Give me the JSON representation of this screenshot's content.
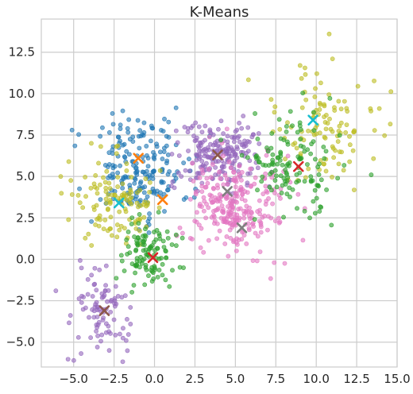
{
  "chart_data": {
    "type": "scatter",
    "title": "K-Means",
    "xlabel": "",
    "ylabel": "",
    "xlim": [
      -7.0,
      15.0
    ],
    "ylim": [
      -6.5,
      14.5
    ],
    "grid": true,
    "x_ticks": [
      -5.0,
      -2.5,
      0.0,
      2.5,
      5.0,
      7.5,
      10.0,
      12.5,
      15.0
    ],
    "x_tick_labels": [
      "−5.0",
      "−2.5",
      "0.0",
      "2.5",
      "5.0",
      "7.5",
      "10.0",
      "12.5",
      "15.0"
    ],
    "y_ticks": [
      -5.0,
      -2.5,
      0.0,
      2.5,
      5.0,
      7.5,
      10.0,
      12.5
    ],
    "y_tick_labels": [
      "−5.0",
      "−2.5",
      "0.0",
      "2.5",
      "5.0",
      "7.5",
      "10.0",
      "12.5"
    ],
    "clusters": [
      {
        "color": "#1f77b4",
        "center": [
          -1.0,
          5.5
        ],
        "spread": [
          1.5,
          1.5
        ],
        "count": 200
      },
      {
        "color": "#bcbd22",
        "center": [
          -2.5,
          3.4
        ],
        "spread": [
          1.3,
          1.3
        ],
        "count": 120
      },
      {
        "color": "#bcbd22",
        "center": [
          10.5,
          7.8
        ],
        "spread": [
          1.8,
          1.8
        ],
        "count": 110
      },
      {
        "color": "#9467bd",
        "center": [
          4.0,
          6.4
        ],
        "spread": [
          1.3,
          1.0
        ],
        "count": 200
      },
      {
        "color": "#9467bd",
        "center": [
          -3.2,
          -3.2
        ],
        "spread": [
          1.0,
          1.2
        ],
        "count": 90
      },
      {
        "color": "#e377c2",
        "center": [
          4.8,
          3.2
        ],
        "spread": [
          1.4,
          1.5
        ],
        "count": 260
      },
      {
        "color": "#2ca02c",
        "center": [
          -0.2,
          0.3
        ],
        "spread": [
          0.9,
          0.9
        ],
        "count": 110
      },
      {
        "color": "#2ca02c",
        "center": [
          8.5,
          5.5
        ],
        "spread": [
          1.4,
          1.6
        ],
        "count": 130
      }
    ],
    "centroids": [
      {
        "x": -1.0,
        "y": 6.1,
        "color": "#ff7f0e"
      },
      {
        "x": 0.5,
        "y": 3.6,
        "color": "#ff7f0e"
      },
      {
        "x": -2.2,
        "y": 3.4,
        "color": "#17becf"
      },
      {
        "x": 9.8,
        "y": 8.4,
        "color": "#17becf"
      },
      {
        "x": 3.9,
        "y": 6.3,
        "color": "#8c564b"
      },
      {
        "x": -3.1,
        "y": -3.1,
        "color": "#8c564b"
      },
      {
        "x": 4.5,
        "y": 4.1,
        "color": "#7f7f7f"
      },
      {
        "x": 5.4,
        "y": 1.9,
        "color": "#7f7f7f"
      },
      {
        "x": 8.9,
        "y": 5.6,
        "color": "#d62728"
      },
      {
        "x": -0.1,
        "y": 0.1,
        "color": "#d62728"
      }
    ],
    "outliers": [
      {
        "x": -5.1,
        "y": 7.8,
        "color": "#1f77b4"
      },
      {
        "x": -2.6,
        "y": 8.8,
        "color": "#1f77b4"
      },
      {
        "x": 10.8,
        "y": 13.6,
        "color": "#bcbd22"
      },
      {
        "x": 9.0,
        "y": 11.7,
        "color": "#bcbd22"
      },
      {
        "x": 13.9,
        "y": 9.1,
        "color": "#bcbd22"
      },
      {
        "x": -6.1,
        "y": -1.9,
        "color": "#9467bd"
      },
      {
        "x": -5.8,
        "y": 5.0,
        "color": "#bcbd22"
      },
      {
        "x": 13.4,
        "y": 5.1,
        "color": "#2ca02c"
      },
      {
        "x": 7.4,
        "y": -0.2,
        "color": "#e377c2"
      },
      {
        "x": -2.8,
        "y": -5.5,
        "color": "#9467bd"
      }
    ]
  }
}
